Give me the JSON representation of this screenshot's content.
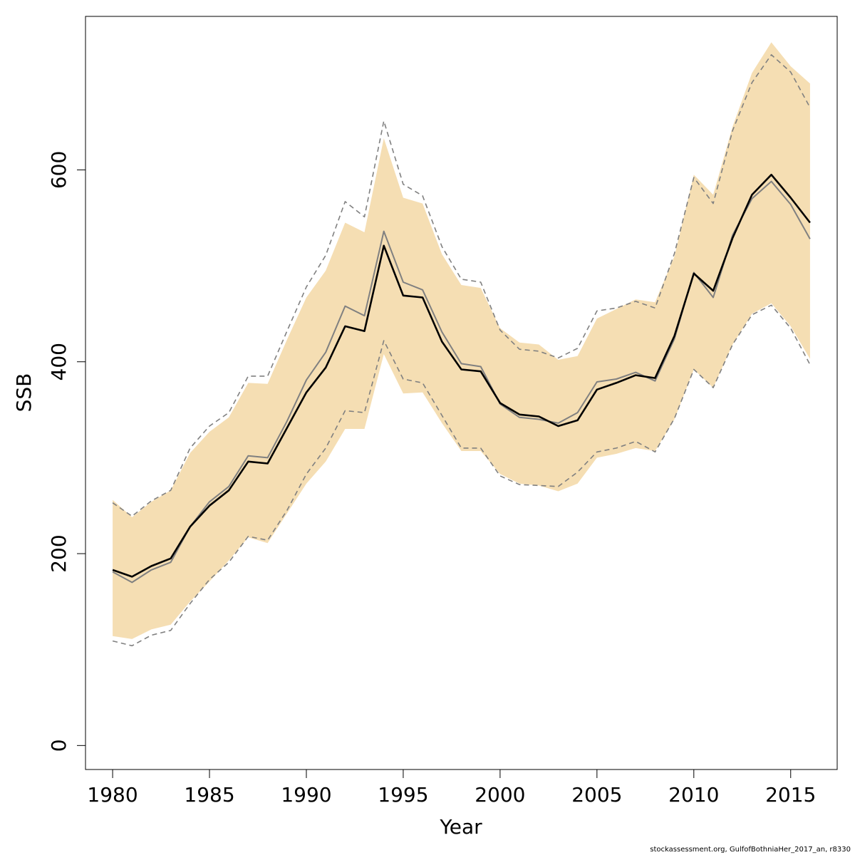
{
  "chart_data": {
    "type": "line",
    "xlabel": "Year",
    "ylabel": "SSB",
    "xlim": [
      1978.6,
      1980.0
    ],
    "x_range": [
      1978.6,
      2017.4
    ],
    "ylim": [
      -25,
      760
    ],
    "x_ticks": [
      1980,
      1985,
      1990,
      1995,
      2000,
      2005,
      2010,
      2015
    ],
    "y_ticks": [
      0,
      200,
      400,
      600
    ],
    "grid": false,
    "legend": "none",
    "colors": {
      "band": "#f5deb3",
      "estimate": "#000000",
      "previous_estimate": "#808080",
      "previous_bounds": "#808080"
    },
    "x": [
      1980,
      1981,
      1982,
      1983,
      1984,
      1985,
      1986,
      1987,
      1988,
      1989,
      1990,
      1991,
      1992,
      1993,
      1994,
      1995,
      1996,
      1997,
      1998,
      1999,
      2000,
      2001,
      2002,
      2003,
      2004,
      2005,
      2006,
      2007,
      2008,
      2009,
      2010,
      2011,
      2012,
      2013,
      2014,
      2015,
      2016
    ],
    "series": [
      {
        "role": "band_upper",
        "values": [
          256,
          238,
          254,
          266,
          305,
          327,
          342,
          378,
          377,
          423,
          467,
          495,
          545,
          535,
          633,
          571,
          565,
          512,
          480,
          477,
          435,
          420,
          418,
          402,
          406,
          445,
          455,
          465,
          462,
          510,
          595,
          574,
          645,
          701,
          733,
          708,
          690
        ]
      },
      {
        "role": "band_lower",
        "values": [
          114,
          111,
          121,
          126,
          150,
          171,
          193,
          217,
          211,
          242,
          273,
          296,
          330,
          330,
          408,
          367,
          368,
          336,
          307,
          307,
          283,
          273,
          271,
          265,
          273,
          300,
          304,
          310,
          307,
          340,
          392,
          373,
          418,
          450,
          461,
          437,
          403
        ]
      },
      {
        "role": "estimate",
        "values": [
          183,
          176,
          187,
          195,
          228,
          250,
          266,
          296,
          294,
          331,
          368,
          394,
          437,
          432,
          521,
          469,
          467,
          421,
          392,
          390,
          357,
          345,
          343,
          333,
          339,
          371,
          378,
          386,
          383,
          427,
          492,
          474,
          529,
          574,
          595,
          571,
          545
        ]
      },
      {
        "role": "previous_estimate",
        "values": [
          181,
          170,
          183,
          191,
          228,
          254,
          270,
          302,
          300,
          338,
          381,
          410,
          458,
          448,
          536,
          483,
          475,
          431,
          398,
          395,
          356,
          342,
          340,
          336,
          347,
          379,
          382,
          389,
          380,
          424,
          493,
          467,
          532,
          570,
          588,
          564,
          528
        ]
      },
      {
        "role": "previous_upper",
        "values": [
          253,
          239,
          255,
          266,
          310,
          333,
          347,
          385,
          385,
          432,
          478,
          511,
          567,
          551,
          651,
          585,
          573,
          520,
          486,
          483,
          433,
          413,
          411,
          404,
          414,
          453,
          456,
          463,
          456,
          513,
          592,
          565,
          641,
          691,
          720,
          702,
          665
        ]
      },
      {
        "role": "previous_lower",
        "values": [
          109,
          104,
          115,
          120,
          148,
          173,
          191,
          218,
          214,
          245,
          283,
          310,
          349,
          347,
          422,
          382,
          378,
          344,
          310,
          310,
          281,
          272,
          271,
          270,
          285,
          306,
          310,
          317,
          306,
          341,
          392,
          373,
          418,
          449,
          459,
          435,
          397
        ]
      }
    ]
  },
  "footer": "stockassessment.org, GulfofBothniaHer_2017_an, r8330"
}
